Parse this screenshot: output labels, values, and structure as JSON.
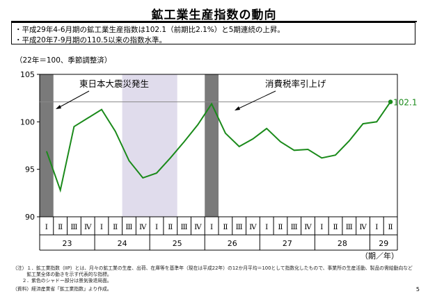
{
  "title": "鉱工業生産指数の動向",
  "summary": [
    "・平成29年4-6月期の鉱工業生産指数は102.1（前期比2.1%）と5期連続の上昇。",
    "・平成20年7-9月期の110.5以来の指数水準。"
  ],
  "unit_note": "（22年＝100、季節調整済）",
  "chart_data": {
    "type": "line",
    "title": "",
    "ylabel": "",
    "ylim": [
      90,
      105
    ],
    "yticks": [
      90,
      95,
      100,
      105
    ],
    "grid": false,
    "categories": [
      "23 I",
      "23 II",
      "23 III",
      "23 IV",
      "24 I",
      "24 II",
      "24 III",
      "24 IV",
      "25 I",
      "25 II",
      "25 III",
      "25 IV",
      "26 I",
      "26 II",
      "26 III",
      "26 IV",
      "27 I",
      "27 II",
      "27 III",
      "27 IV",
      "28 I",
      "28 II",
      "28 III",
      "28 IV",
      "29 I",
      "29 II"
    ],
    "values": [
      96.9,
      92.8,
      99.5,
      100.4,
      101.3,
      99.0,
      95.9,
      94.1,
      94.6,
      96.2,
      97.9,
      99.7,
      101.9,
      98.8,
      97.4,
      98.2,
      99.3,
      97.9,
      97.0,
      97.1,
      96.2,
      96.5,
      98.0,
      99.8,
      100.0,
      102.1
    ],
    "x_tick_labels": [
      "Ⅰ",
      "Ⅱ",
      "Ⅲ",
      "Ⅳ",
      "Ⅰ",
      "Ⅱ",
      "Ⅲ",
      "Ⅳ",
      "Ⅰ",
      "Ⅱ",
      "Ⅲ",
      "Ⅳ",
      "Ⅰ",
      "Ⅱ",
      "Ⅲ",
      "Ⅳ",
      "Ⅰ",
      "Ⅱ",
      "Ⅲ",
      "Ⅳ",
      "Ⅰ",
      "Ⅱ",
      "Ⅲ",
      "Ⅳ",
      "Ⅰ",
      "Ⅱ"
    ],
    "year_groups": [
      {
        "label": "23",
        "span": 4
      },
      {
        "label": "24",
        "span": 4
      },
      {
        "label": "25",
        "span": 4
      },
      {
        "label": "26",
        "span": 4
      },
      {
        "label": "27",
        "span": 4
      },
      {
        "label": "28",
        "span": 4
      },
      {
        "label": "29",
        "span": 2
      }
    ],
    "x_axis_suffix": "（期／年）",
    "line_color": "#1a8a1a",
    "reference_line": {
      "value": 102.1,
      "color": "#888888"
    },
    "end_label": "102.1",
    "shaded_regions": [
      {
        "from": 0,
        "to": 0,
        "color": "#7a7a7a"
      },
      {
        "from": 6,
        "to": 9,
        "color": "#e0dcec"
      },
      {
        "from": 12,
        "to": 12,
        "color": "#7a7a7a"
      }
    ],
    "annotations": [
      {
        "text": "東日本大震災発生"
      },
      {
        "text": "消費税率引上げ"
      }
    ]
  },
  "notes": [
    "（注）１．鉱工業指数（IIP）とは、月々の鉱工業の生産、出荷、在庫等を基準年（現在は平成22年）の12か月平均＝100として指数化したもので、事業所の生産活動、製品の需給動向など",
    "　　　鉱工業全体の動きを示す代表的な指標。",
    "　　２．紫色のシャドー部分は景気後退局面。",
    "（資料）経済産業省「鉱工業指数」より作成。"
  ],
  "page_number": "5"
}
